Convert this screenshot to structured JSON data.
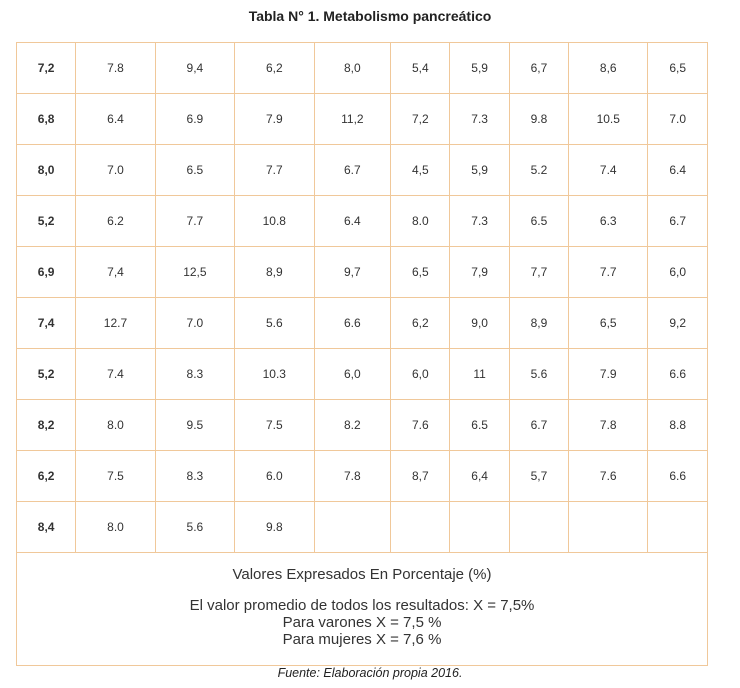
{
  "title": "Tabla N° 1. Metabolismo pancreático",
  "rows": [
    [
      "7,2",
      "7.8",
      "9,4",
      "6,2",
      "8,0",
      "5,4",
      "5,9",
      "6,7",
      "8,6",
      "6,5"
    ],
    [
      "6,8",
      "6.4",
      "6.9",
      "7.9",
      "11,2",
      "7,2",
      "7.3",
      "9.8",
      "10.5",
      "7.0"
    ],
    [
      "8,0",
      "7.0",
      "6.5",
      "7.7",
      "6.7",
      "4,5",
      "5,9",
      "5.2",
      "7.4",
      "6.4"
    ],
    [
      "5,2",
      "6.2",
      "7.7",
      "10.8",
      "6.4",
      "8.0",
      "7.3",
      "6.5",
      "6.3",
      "6.7"
    ],
    [
      "6,9",
      "7,4",
      "12,5",
      "8,9",
      "9,7",
      "6,5",
      "7,9",
      "7,7",
      "7.7",
      "6,0"
    ],
    [
      "7,4",
      "12.7",
      "7.0",
      "5.6",
      "6.6",
      "6,2",
      "9,0",
      "8,9",
      "6,5",
      "9,2"
    ],
    [
      "5,2",
      "7.4",
      "8.3",
      "10.3",
      "6,0",
      "6,0",
      "11",
      "5.6",
      "7.9",
      "6.6"
    ],
    [
      "8,2",
      "8.0",
      "9.5",
      "7.5",
      "8.2",
      "7.6",
      "6.5",
      "6.7",
      "7.8",
      "8.8"
    ],
    [
      "6,2",
      "7.5",
      "8.3",
      "6.0",
      "7.8",
      "8,7",
      "6,4",
      "5,7",
      "7.6",
      "6.6"
    ],
    [
      "8,4",
      "8.0",
      "5.6",
      "9.8",
      "",
      "",
      "",
      "",
      "",
      ""
    ]
  ],
  "footer": {
    "units": "Valores Expresados En Porcentaje (%)",
    "mean_all": "El valor promedio de todos los resultados: X = 7,5%",
    "mean_men": "Para varones X = 7,5 %",
    "mean_women": "Para mujeres X =  7,6 %"
  },
  "source": "Fuente: Elaboración propia 2016."
}
